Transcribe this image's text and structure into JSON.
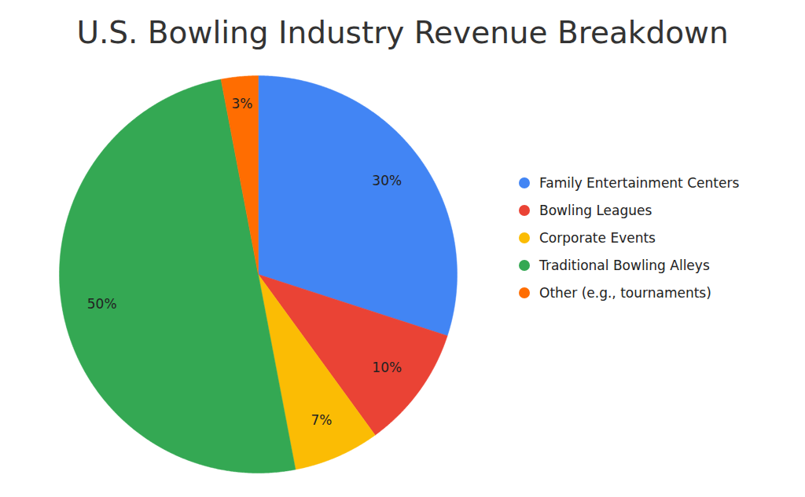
{
  "chart_data": {
    "type": "pie",
    "title": "U.S. Bowling Industry Revenue Breakdown",
    "categories": [
      "Family Entertainment Centers",
      "Bowling Leagues",
      "Corporate Events",
      "Traditional Bowling Alleys",
      "Other (e.g., tournaments)"
    ],
    "values": [
      30,
      10,
      7,
      50,
      3
    ],
    "value_labels": [
      "30%",
      "10%",
      "7%",
      "50%",
      "3%"
    ],
    "colors": [
      "#4285f4",
      "#ea4335",
      "#fbbc04",
      "#34a853",
      "#ff6d01"
    ],
    "data_labels": true,
    "legend": "right"
  }
}
